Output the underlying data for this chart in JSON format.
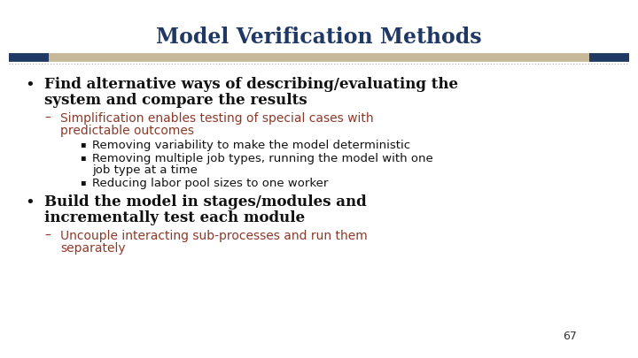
{
  "title": "Model Verification Methods",
  "title_color": "#1F3864",
  "title_fontsize": 17,
  "bg_color": "#FFFFFF",
  "sep_beige": "#C8B89A",
  "sep_dark": "#1F3864",
  "sep_dot_color": "#AAAAAA",
  "bullet_color": "#111111",
  "bullet_fontsize": 12,
  "bullet1_line1": "Find alternative ways of describing/evaluating the",
  "bullet1_line2": "system and compare the results",
  "sub1_color": "#8B3A2A",
  "sub1_fontsize": 10,
  "sub1_line1": "Simplification enables testing of special cases with",
  "sub1_line2": "predictable outcomes",
  "sub_bullet_color": "#111111",
  "sub_bullet_fontsize": 9.5,
  "sb1": "Removing variability to make the model deterministic",
  "sb2_line1": "Removing multiple job types, running the model with one",
  "sb2_line2": "job type at a time",
  "sb3": "Reducing labor pool sizes to one worker",
  "bullet2_line1": "Build the model in stages/modules and",
  "bullet2_line2": "incrementally test each module",
  "sub2_color": "#8B3A2A",
  "sub2_fontsize": 10,
  "sub2_line1": "Uncouple interacting sub-processes and run them",
  "sub2_line2": "separately",
  "page_number": "67",
  "page_number_fontsize": 9,
  "page_number_color": "#333333"
}
